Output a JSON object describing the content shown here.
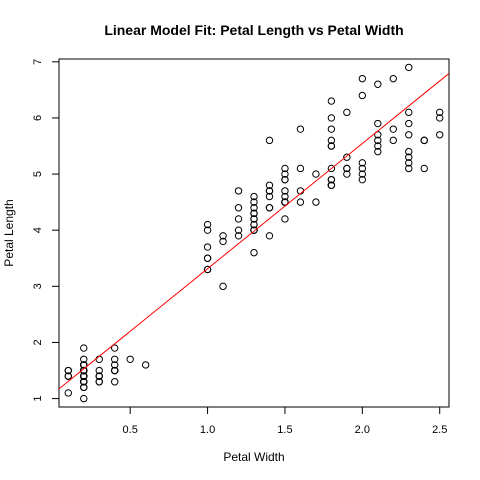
{
  "chart_data": {
    "type": "scatter",
    "title": "Linear Model Fit: Petal Length vs Petal Width",
    "xlabel": "Petal Width",
    "ylabel": "Petal Length",
    "xlim": [
      0.04,
      2.56
    ],
    "ylim": [
      0.85,
      7.05
    ],
    "x_ticks": [
      0.5,
      1.0,
      1.5,
      2.0,
      2.5
    ],
    "x_tick_labels": [
      "0.5",
      "1.0",
      "1.5",
      "2.0",
      "2.5"
    ],
    "y_ticks": [
      1,
      2,
      3,
      4,
      5,
      6,
      7
    ],
    "y_tick_labels": [
      "1",
      "2",
      "3",
      "4",
      "5",
      "6",
      "7"
    ],
    "grid": false,
    "fit_line": {
      "intercept": 1.084,
      "slope": 2.23,
      "color": "#ff0000"
    },
    "points": {
      "x": [
        0.2,
        0.2,
        0.2,
        0.2,
        0.2,
        0.4,
        0.3,
        0.2,
        0.2,
        0.1,
        0.2,
        0.2,
        0.1,
        0.1,
        0.2,
        0.4,
        0.4,
        0.3,
        0.3,
        0.3,
        0.2,
        0.4,
        0.2,
        0.5,
        0.2,
        0.2,
        0.4,
        0.2,
        0.2,
        0.2,
        0.2,
        0.4,
        0.1,
        0.2,
        0.2,
        0.2,
        0.2,
        0.1,
        0.2,
        0.2,
        0.3,
        0.3,
        0.2,
        0.6,
        0.4,
        0.3,
        0.2,
        0.2,
        0.2,
        0.2,
        1.4,
        1.5,
        1.5,
        1.3,
        1.5,
        1.3,
        1.6,
        1.0,
        1.3,
        1.4,
        1.0,
        1.5,
        1.0,
        1.4,
        1.3,
        1.4,
        1.5,
        1.0,
        1.5,
        1.1,
        1.8,
        1.3,
        1.5,
        1.2,
        1.3,
        1.4,
        1.4,
        1.7,
        1.5,
        1.0,
        1.1,
        1.0,
        1.2,
        1.6,
        1.5,
        1.6,
        1.5,
        1.3,
        1.3,
        1.3,
        1.2,
        1.4,
        1.2,
        1.0,
        1.3,
        1.2,
        1.3,
        1.3,
        1.1,
        1.3,
        2.5,
        1.9,
        2.1,
        1.8,
        2.2,
        2.1,
        1.7,
        1.8,
        1.8,
        2.5,
        2.0,
        1.9,
        2.1,
        2.0,
        2.4,
        2.3,
        1.8,
        2.2,
        2.3,
        1.5,
        2.3,
        2.0,
        2.0,
        1.8,
        2.1,
        1.8,
        1.8,
        1.8,
        2.1,
        1.6,
        1.9,
        2.0,
        2.2,
        1.5,
        1.4,
        2.3,
        2.4,
        1.8,
        1.8,
        2.1,
        2.4,
        2.3,
        1.9,
        2.3,
        2.5,
        2.3,
        1.9,
        2.0,
        2.3,
        1.8
      ],
      "y": [
        1.4,
        1.4,
        1.3,
        1.5,
        1.4,
        1.7,
        1.4,
        1.5,
        1.4,
        1.5,
        1.5,
        1.6,
        1.4,
        1.1,
        1.2,
        1.5,
        1.3,
        1.4,
        1.7,
        1.5,
        1.7,
        1.5,
        1.0,
        1.7,
        1.9,
        1.6,
        1.6,
        1.5,
        1.4,
        1.6,
        1.6,
        1.5,
        1.5,
        1.4,
        1.5,
        1.2,
        1.3,
        1.4,
        1.3,
        1.5,
        1.3,
        1.3,
        1.3,
        1.6,
        1.9,
        1.4,
        1.6,
        1.4,
        1.5,
        1.4,
        4.7,
        4.5,
        4.9,
        4.0,
        4.6,
        4.5,
        4.7,
        3.3,
        4.6,
        3.9,
        3.5,
        4.2,
        4.0,
        4.7,
        3.6,
        4.4,
        4.5,
        4.1,
        4.5,
        3.9,
        4.8,
        4.0,
        4.9,
        4.7,
        4.3,
        4.4,
        4.8,
        5.0,
        4.5,
        3.5,
        3.8,
        3.7,
        3.9,
        5.1,
        4.5,
        4.5,
        4.7,
        4.4,
        4.1,
        4.0,
        4.4,
        4.6,
        4.0,
        3.3,
        4.2,
        4.2,
        4.2,
        4.3,
        3.0,
        4.1,
        6.0,
        5.1,
        5.9,
        5.6,
        5.8,
        6.6,
        4.5,
        6.3,
        5.8,
        6.1,
        5.1,
        5.3,
        5.5,
        5.0,
        5.1,
        5.3,
        5.5,
        6.7,
        6.9,
        5.0,
        5.7,
        4.9,
        6.7,
        4.9,
        5.7,
        6.0,
        4.8,
        4.9,
        5.6,
        5.8,
        6.1,
        6.4,
        5.6,
        5.1,
        5.6,
        6.1,
        5.6,
        5.5,
        4.8,
        5.4,
        5.6,
        5.1,
        5.1,
        5.9,
        5.7,
        5.2,
        5.0,
        5.2,
        5.4,
        5.1
      ]
    }
  }
}
